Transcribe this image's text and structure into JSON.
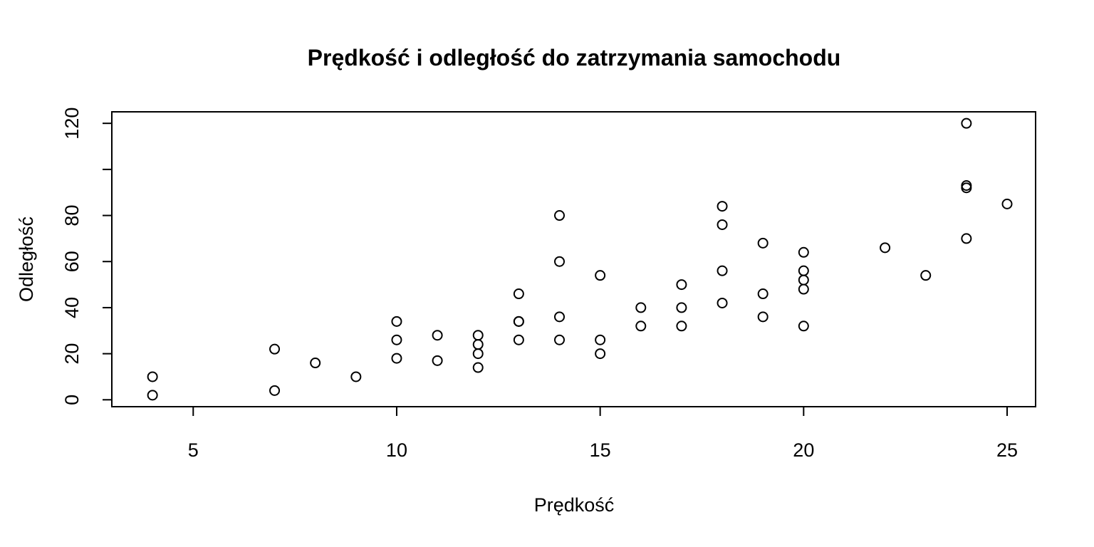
{
  "chart_data": {
    "type": "scatter",
    "title": "Prędkość i odległość do zatrzymania samochodu",
    "xlabel": "Prędkość",
    "ylabel": "Odległość",
    "xlim": [
      3,
      25.7
    ],
    "ylim": [
      -3,
      125
    ],
    "xticks": [
      5,
      10,
      15,
      20,
      25
    ],
    "yticks": [
      0,
      20,
      40,
      60,
      80,
      100,
      120
    ],
    "ytick_labels": [
      "0",
      "20",
      "40",
      "60",
      "80",
      "",
      "120"
    ],
    "grid": false,
    "marker": "open-circle",
    "colors": {
      "points": "#000000",
      "axes": "#000000",
      "background": "#ffffff"
    },
    "points": [
      {
        "x": 4,
        "y": 2
      },
      {
        "x": 4,
        "y": 10
      },
      {
        "x": 7,
        "y": 4
      },
      {
        "x": 7,
        "y": 22
      },
      {
        "x": 8,
        "y": 16
      },
      {
        "x": 9,
        "y": 10
      },
      {
        "x": 10,
        "y": 18
      },
      {
        "x": 10,
        "y": 26
      },
      {
        "x": 10,
        "y": 34
      },
      {
        "x": 11,
        "y": 17
      },
      {
        "x": 11,
        "y": 28
      },
      {
        "x": 12,
        "y": 14
      },
      {
        "x": 12,
        "y": 20
      },
      {
        "x": 12,
        "y": 24
      },
      {
        "x": 12,
        "y": 28
      },
      {
        "x": 13,
        "y": 26
      },
      {
        "x": 13,
        "y": 34
      },
      {
        "x": 13,
        "y": 34
      },
      {
        "x": 13,
        "y": 46
      },
      {
        "x": 14,
        "y": 26
      },
      {
        "x": 14,
        "y": 36
      },
      {
        "x": 14,
        "y": 60
      },
      {
        "x": 14,
        "y": 80
      },
      {
        "x": 15,
        "y": 20
      },
      {
        "x": 15,
        "y": 26
      },
      {
        "x": 15,
        "y": 54
      },
      {
        "x": 16,
        "y": 32
      },
      {
        "x": 16,
        "y": 40
      },
      {
        "x": 17,
        "y": 32
      },
      {
        "x": 17,
        "y": 40
      },
      {
        "x": 17,
        "y": 50
      },
      {
        "x": 18,
        "y": 42
      },
      {
        "x": 18,
        "y": 56
      },
      {
        "x": 18,
        "y": 76
      },
      {
        "x": 18,
        "y": 84
      },
      {
        "x": 19,
        "y": 36
      },
      {
        "x": 19,
        "y": 46
      },
      {
        "x": 19,
        "y": 68
      },
      {
        "x": 20,
        "y": 32
      },
      {
        "x": 20,
        "y": 48
      },
      {
        "x": 20,
        "y": 52
      },
      {
        "x": 20,
        "y": 56
      },
      {
        "x": 20,
        "y": 64
      },
      {
        "x": 22,
        "y": 66
      },
      {
        "x": 23,
        "y": 54
      },
      {
        "x": 24,
        "y": 70
      },
      {
        "x": 24,
        "y": 92
      },
      {
        "x": 24,
        "y": 93
      },
      {
        "x": 24,
        "y": 120
      },
      {
        "x": 25,
        "y": 85
      }
    ]
  }
}
